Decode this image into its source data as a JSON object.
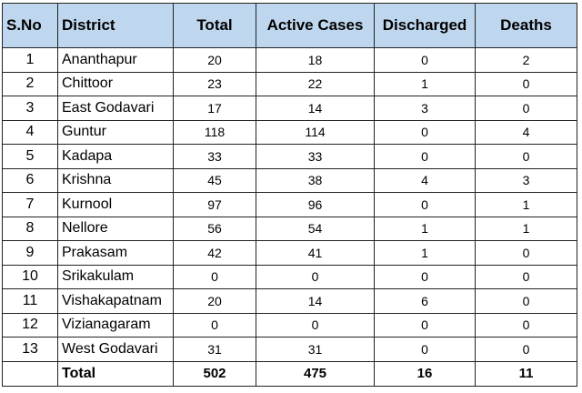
{
  "table": {
    "headers": {
      "sno": "S.No",
      "district": "District",
      "total": "Total",
      "active": "Active Cases",
      "discharged": "Discharged",
      "deaths": "Deaths"
    },
    "rows": [
      {
        "sno": "1",
        "district": "Ananthapur",
        "total": "20",
        "active": "18",
        "discharged": "0",
        "deaths": "2"
      },
      {
        "sno": "2",
        "district": "Chittoor",
        "total": "23",
        "active": "22",
        "discharged": "1",
        "deaths": "0"
      },
      {
        "sno": "3",
        "district": "East Godavari",
        "total": "17",
        "active": "14",
        "discharged": "3",
        "deaths": "0"
      },
      {
        "sno": "4",
        "district": "Guntur",
        "total": "118",
        "active": "114",
        "discharged": "0",
        "deaths": "4"
      },
      {
        "sno": "5",
        "district": "Kadapa",
        "total": "33",
        "active": "33",
        "discharged": "0",
        "deaths": "0"
      },
      {
        "sno": "6",
        "district": "Krishna",
        "total": "45",
        "active": "38",
        "discharged": "4",
        "deaths": "3"
      },
      {
        "sno": "7",
        "district": "Kurnool",
        "total": "97",
        "active": "96",
        "discharged": "0",
        "deaths": "1"
      },
      {
        "sno": "8",
        "district": "Nellore",
        "total": "56",
        "active": "54",
        "discharged": "1",
        "deaths": "1"
      },
      {
        "sno": "9",
        "district": "Prakasam",
        "total": "42",
        "active": "41",
        "discharged": "1",
        "deaths": "0"
      },
      {
        "sno": "10",
        "district": "Srikakulam",
        "total": "0",
        "active": "0",
        "discharged": "0",
        "deaths": "0"
      },
      {
        "sno": "11",
        "district": "Vishakapatnam",
        "total": "20",
        "active": "14",
        "discharged": "6",
        "deaths": "0"
      },
      {
        "sno": "12",
        "district": "Vizianagaram",
        "total": "0",
        "active": "0",
        "discharged": "0",
        "deaths": "0"
      },
      {
        "sno": "13",
        "district": "West Godavari",
        "total": "31",
        "active": "31",
        "discharged": "0",
        "deaths": "0"
      }
    ],
    "totals": {
      "label": "Total",
      "total": "502",
      "active": "475",
      "discharged": "16",
      "deaths": "11"
    },
    "colors": {
      "header_background": "#bfd7ee",
      "border": "#222222"
    }
  }
}
